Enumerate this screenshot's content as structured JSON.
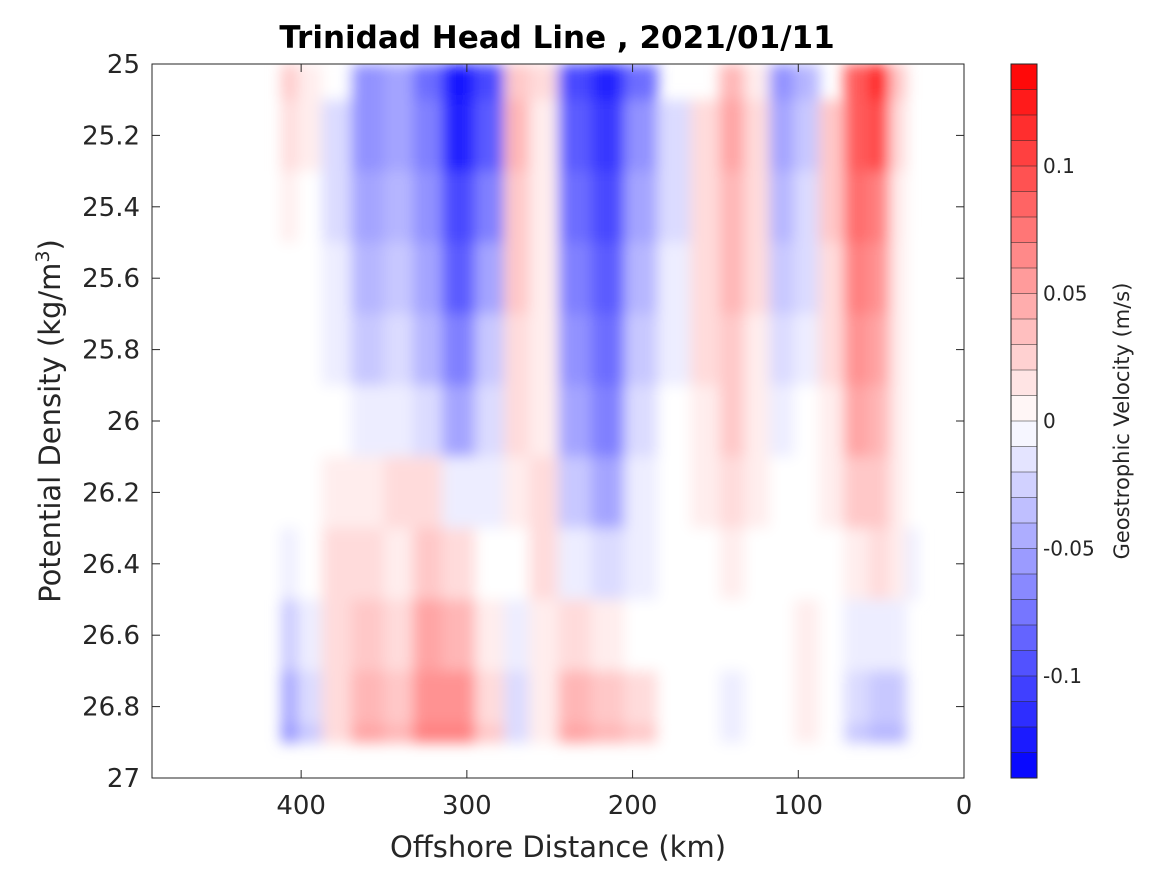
{
  "chart_data": {
    "type": "heatmap",
    "title": "Trinidad Head Line , 2021/01/11",
    "xlabel": "Offshore Distance (km)",
    "ylabel": "Potential Density (kg/m3)",
    "ylabel_parts": {
      "base": "Potential Density (kg/m",
      "sup": "3",
      "end": ")"
    },
    "xlim": [
      490,
      0
    ],
    "ylim": [
      25,
      27
    ],
    "x_reversed": true,
    "y_reversed": true,
    "xticks": [
      400,
      300,
      200,
      100,
      0
    ],
    "yticks": [
      25,
      25.2,
      25.4,
      25.6,
      25.8,
      26,
      26.2,
      26.4,
      26.6,
      26.8,
      27
    ],
    "ytick_labels": [
      "25",
      "25.2",
      "25.4",
      "25.6",
      "25.8",
      "26",
      "26.2",
      "26.4",
      "26.6",
      "26.8",
      "27"
    ],
    "grid": false,
    "colorbar": {
      "label": "Geostrophic Velocity (m/s)",
      "range": [
        -0.14,
        0.14
      ],
      "step": 0.01,
      "ticks": [
        0.1,
        0.05,
        0,
        -0.05,
        -0.1
      ],
      "tick_labels": [
        "0.1",
        "0.05",
        "0",
        "-0.05",
        "-0.1"
      ],
      "neg_color": "#0000ff",
      "pos_color": "#ff0000",
      "zero_color": "#ffffff"
    },
    "field": {
      "x": [
        410,
        395,
        380,
        360,
        340,
        325,
        305,
        285,
        270,
        255,
        235,
        215,
        195,
        175,
        155,
        140,
        125,
        110,
        95,
        80,
        65,
        50,
        40,
        30
      ],
      "y": [
        25,
        25.2,
        25.4,
        25.6,
        25.8,
        26,
        26.2,
        26.4,
        26.6,
        26.8,
        26.9
      ],
      "values": [
        [
          0.03,
          0.01,
          0,
          -0.06,
          -0.05,
          -0.08,
          -0.13,
          -0.1,
          0.03,
          0.02,
          -0.1,
          -0.12,
          -0.08,
          null,
          null,
          0.04,
          0.01,
          -0.06,
          -0.04,
          null,
          0.09,
          0.12,
          0.03,
          null
        ],
        [
          0.02,
          0.01,
          -0.02,
          -0.06,
          -0.05,
          -0.07,
          -0.12,
          -0.09,
          0.04,
          0.01,
          -0.09,
          -0.11,
          -0.06,
          -0.02,
          0.02,
          0.05,
          0.02,
          -0.05,
          -0.03,
          0.03,
          0.09,
          0.1,
          0.02,
          null
        ],
        [
          0.01,
          0,
          -0.02,
          -0.05,
          -0.04,
          -0.06,
          -0.1,
          -0.07,
          0.03,
          0.01,
          -0.08,
          -0.1,
          -0.05,
          -0.02,
          0.02,
          0.04,
          0.02,
          -0.04,
          -0.02,
          0.03,
          0.08,
          0.07,
          0.01,
          null
        ],
        [
          0,
          0,
          -0.01,
          -0.04,
          -0.03,
          -0.05,
          -0.09,
          -0.05,
          0.03,
          0.01,
          -0.07,
          -0.09,
          -0.04,
          -0.01,
          0.02,
          0.04,
          0.02,
          -0.03,
          -0.02,
          0.02,
          0.07,
          0.06,
          0.01,
          0
        ],
        [
          0,
          0,
          -0.01,
          -0.03,
          -0.02,
          -0.04,
          -0.07,
          -0.03,
          0.02,
          0.01,
          -0.06,
          -0.08,
          -0.03,
          -0.01,
          0.02,
          0.03,
          0.01,
          -0.02,
          -0.01,
          0.02,
          0.06,
          0.05,
          0.01,
          0
        ],
        [
          0,
          0,
          0,
          -0.01,
          -0.01,
          -0.02,
          -0.05,
          -0.02,
          0.02,
          0.01,
          -0.05,
          -0.07,
          -0.02,
          0,
          0.01,
          0.03,
          0.01,
          -0.01,
          0,
          0.01,
          0.05,
          0.04,
          0.01,
          0
        ],
        [
          0,
          0,
          0.01,
          0.01,
          0.02,
          0.02,
          -0.01,
          -0.01,
          0.01,
          0.02,
          -0.03,
          -0.05,
          -0.01,
          0,
          0.01,
          0.02,
          0.01,
          0,
          0,
          0.01,
          0.03,
          0.03,
          0.01,
          0
        ],
        [
          -0.01,
          0,
          0.02,
          0.02,
          0.01,
          0.03,
          0.02,
          0,
          0,
          0.02,
          -0.01,
          -0.02,
          -0.01,
          0,
          0,
          0.01,
          0,
          0,
          0,
          0,
          0.01,
          0.02,
          0.01,
          -0.01
        ],
        [
          -0.03,
          -0.01,
          0.02,
          0.03,
          0.02,
          0.05,
          0.04,
          0.01,
          -0.01,
          0.01,
          0.02,
          0.01,
          0,
          0,
          0,
          0,
          0,
          0,
          0.01,
          0,
          -0.01,
          -0.01,
          -0.01,
          null
        ],
        [
          -0.05,
          -0.02,
          0.02,
          0.04,
          0.03,
          0.06,
          0.06,
          0.02,
          -0.02,
          0.01,
          0.04,
          0.03,
          0.02,
          0,
          0,
          -0.01,
          0,
          0,
          0.01,
          0,
          -0.02,
          -0.03,
          -0.03,
          null
        ],
        [
          -0.06,
          -0.03,
          0.02,
          0.05,
          0.04,
          0.07,
          0.07,
          0.03,
          -0.02,
          0.01,
          0.05,
          0.04,
          0.03,
          0,
          0,
          -0.01,
          0,
          0,
          0.01,
          0,
          -0.03,
          -0.04,
          -0.04,
          null
        ]
      ]
    }
  }
}
